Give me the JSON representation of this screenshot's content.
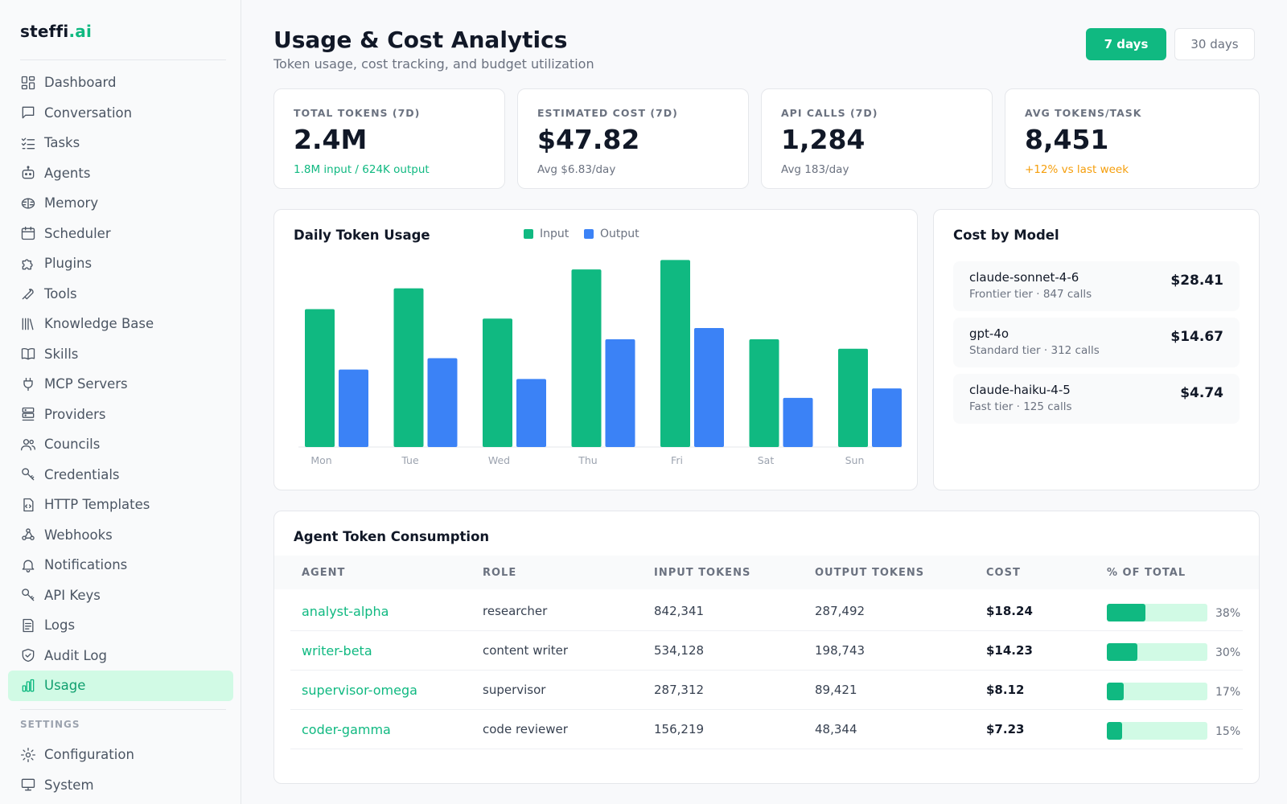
{
  "app": {
    "logo_main": "steffi",
    "logo_accent": ".ai"
  },
  "sidebar": {
    "items": [
      {
        "label": "Dashboard",
        "icon": "dashboard-icon"
      },
      {
        "label": "Conversation",
        "icon": "chat-icon"
      },
      {
        "label": "Tasks",
        "icon": "tasks-icon"
      },
      {
        "label": "Agents",
        "icon": "robot-icon"
      },
      {
        "label": "Memory",
        "icon": "brain-icon"
      },
      {
        "label": "Scheduler",
        "icon": "calendar-icon"
      },
      {
        "label": "Plugins",
        "icon": "puzzle-icon"
      },
      {
        "label": "Tools",
        "icon": "wrench-icon"
      },
      {
        "label": "Knowledge Base",
        "icon": "library-icon"
      },
      {
        "label": "Skills",
        "icon": "book-icon"
      },
      {
        "label": "MCP Servers",
        "icon": "plug-icon"
      },
      {
        "label": "Providers",
        "icon": "server-icon"
      },
      {
        "label": "Councils",
        "icon": "users-icon"
      },
      {
        "label": "Credentials",
        "icon": "key-icon"
      },
      {
        "label": "HTTP Templates",
        "icon": "file-code-icon"
      },
      {
        "label": "Webhooks",
        "icon": "webhook-icon"
      },
      {
        "label": "Notifications",
        "icon": "bell-icon"
      },
      {
        "label": "API Keys",
        "icon": "key-icon"
      },
      {
        "label": "Logs",
        "icon": "logs-icon"
      },
      {
        "label": "Audit Log",
        "icon": "shield-icon"
      },
      {
        "label": "Usage",
        "icon": "bar-chart-icon",
        "active": true
      }
    ],
    "settings_label": "SETTINGS",
    "settings_items": [
      {
        "label": "Configuration",
        "icon": "gear-icon"
      },
      {
        "label": "System",
        "icon": "monitor-icon"
      }
    ]
  },
  "header": {
    "title": "Usage & Cost Analytics",
    "subtitle": "Token usage, cost tracking, and budget utilization",
    "range_7": "7 days",
    "range_30": "30 days",
    "active_range": "7 days"
  },
  "stats": [
    {
      "label": "TOTAL TOKENS (7D)",
      "value": "2.4M",
      "sub": "1.8M input / 624K output",
      "sub_tone": "green"
    },
    {
      "label": "ESTIMATED COST (7D)",
      "value": "$47.82",
      "sub": "Avg $6.83/day",
      "sub_tone": "neutral"
    },
    {
      "label": "API CALLS (7D)",
      "value": "1,284",
      "sub": "Avg 183/day",
      "sub_tone": "neutral"
    },
    {
      "label": "AVG TOKENS/TASK",
      "value": "8,451",
      "sub": "+12% vs last week",
      "sub_tone": "orange"
    }
  ],
  "chart": {
    "title": "Daily Token Usage",
    "legend_input": "Input",
    "legend_output": "Output"
  },
  "chart_data": {
    "type": "bar",
    "title": "Daily Token Usage",
    "categories": [
      "Mon",
      "Tue",
      "Wed",
      "Thu",
      "Fri",
      "Sat",
      "Sun"
    ],
    "series": [
      {
        "name": "Input",
        "color": "#10b981",
        "values": [
          0.73,
          0.84,
          0.68,
          0.94,
          0.99,
          0.57,
          0.52
        ]
      },
      {
        "name": "Output",
        "color": "#3b82f6",
        "values": [
          0.41,
          0.47,
          0.36,
          0.57,
          0.63,
          0.26,
          0.31
        ]
      }
    ],
    "ylim": [
      0,
      1
    ],
    "grid": false,
    "legend": "top"
  },
  "models": {
    "title": "Cost by Model",
    "items": [
      {
        "name": "claude-sonnet-4-6",
        "meta": "Frontier tier · 847 calls",
        "cost": "$28.41"
      },
      {
        "name": "gpt-4o",
        "meta": "Standard tier · 312 calls",
        "cost": "$14.67"
      },
      {
        "name": "claude-haiku-4-5",
        "meta": "Fast tier · 125 calls",
        "cost": "$4.74"
      }
    ]
  },
  "agents_table": {
    "title": "Agent Token Consumption",
    "columns": [
      "AGENT",
      "ROLE",
      "INPUT TOKENS",
      "OUTPUT TOKENS",
      "COST",
      "% OF TOTAL"
    ],
    "rows": [
      {
        "agent": "analyst-alpha",
        "role": "researcher",
        "input": "842,341",
        "output": "287,492",
        "cost": "$18.24",
        "pct_label": "38%",
        "pct": 0.38
      },
      {
        "agent": "writer-beta",
        "role": "content writer",
        "input": "534,128",
        "output": "198,743",
        "cost": "$14.23",
        "pct_label": "30%",
        "pct": 0.3
      },
      {
        "agent": "supervisor-omega",
        "role": "supervisor",
        "input": "287,312",
        "output": "89,421",
        "cost": "$8.12",
        "pct_label": "17%",
        "pct": 0.17
      },
      {
        "agent": "coder-gamma",
        "role": "code reviewer",
        "input": "156,219",
        "output": "48,344",
        "cost": "$7.23",
        "pct_label": "15%",
        "pct": 0.15
      }
    ]
  }
}
